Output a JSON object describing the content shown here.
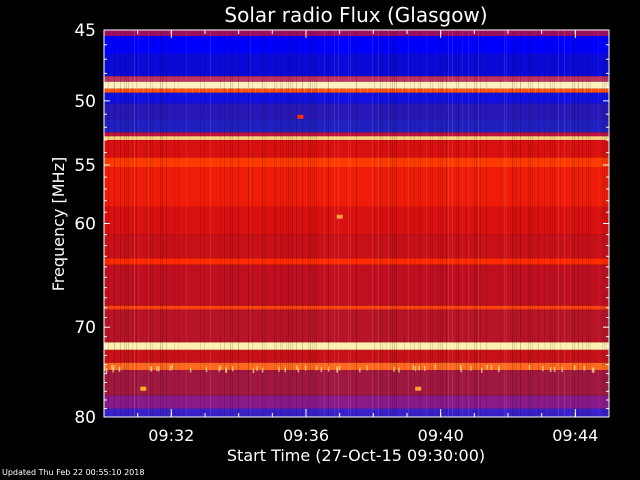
{
  "chart_data": {
    "type": "heatmap",
    "title": "Solar radio Flux (Glasgow)",
    "xlabel": "Start Time (27-Oct-15 09:30:00)",
    "ylabel": "Frequency [MHz]",
    "y_scale": "log",
    "ylim": [
      45,
      80
    ],
    "y_ticks": [
      45,
      50,
      55,
      60,
      70,
      80
    ],
    "y_tick_labels": [
      "45",
      "50",
      "55",
      "60",
      "70",
      "80"
    ],
    "x_ticks": [
      "09:32",
      "09:36",
      "09:40",
      "09:44"
    ],
    "x_range": [
      "09:30:00",
      "09:45:00"
    ],
    "colormap": [
      "#000040",
      "#0000ff",
      "#2020c0",
      "#8a1a8a",
      "#d81010",
      "#ff2a00",
      "#ffa040",
      "#fff0b0"
    ],
    "bands": [
      {
        "f0": 45.0,
        "f1": 45.4,
        "color": "#a01060"
      },
      {
        "f0": 45.4,
        "f1": 46.6,
        "color": "#0000ff"
      },
      {
        "f0": 46.6,
        "f1": 48.2,
        "color": "#0a0ad8"
      },
      {
        "f0": 48.2,
        "f1": 48.6,
        "color": "#c03060"
      },
      {
        "f0": 48.6,
        "f1": 49.1,
        "color": "#fff0c0"
      },
      {
        "f0": 49.1,
        "f1": 49.4,
        "color": "#ff5010"
      },
      {
        "f0": 49.4,
        "f1": 50.2,
        "color": "#1010e0"
      },
      {
        "f0": 50.2,
        "f1": 51.4,
        "color": "#2818b8"
      },
      {
        "f0": 51.4,
        "f1": 52.4,
        "color": "#2020c0"
      },
      {
        "f0": 52.4,
        "f1": 52.7,
        "color": "#c01040"
      },
      {
        "f0": 52.7,
        "f1": 53.0,
        "color": "#ffd080"
      },
      {
        "f0": 53.0,
        "f1": 54.4,
        "color": "#d81010"
      },
      {
        "f0": 54.4,
        "f1": 55.2,
        "color": "#ff3a00"
      },
      {
        "f0": 55.2,
        "f1": 58.5,
        "color": "#ee1c08"
      },
      {
        "f0": 58.5,
        "f1": 61.0,
        "color": "#d81010"
      },
      {
        "f0": 61.0,
        "f1": 63.2,
        "color": "#c81018"
      },
      {
        "f0": 63.2,
        "f1": 63.8,
        "color": "#ff2a00"
      },
      {
        "f0": 63.8,
        "f1": 67.8,
        "color": "#c01020"
      },
      {
        "f0": 67.8,
        "f1": 68.2,
        "color": "#ff4010"
      },
      {
        "f0": 68.2,
        "f1": 71.6,
        "color": "#b81428"
      },
      {
        "f0": 71.6,
        "f1": 72.4,
        "color": "#fff0b0"
      },
      {
        "f0": 72.4,
        "f1": 73.8,
        "color": "#c81018"
      },
      {
        "f0": 73.8,
        "f1": 74.6,
        "color": "#ff6a20"
      },
      {
        "f0": 74.6,
        "f1": 77.5,
        "color": "#a01840"
      },
      {
        "f0": 77.5,
        "f1": 79.0,
        "color": "#8a1a8a"
      },
      {
        "f0": 79.0,
        "f1": 80.0,
        "color": "#3a20c8"
      }
    ],
    "spots": [
      {
        "t": "09:35:50",
        "f": 51.2,
        "color": "#ff3000"
      },
      {
        "t": "09:37:00",
        "f": 59.4,
        "color": "#ffa040"
      },
      {
        "t": "09:31:10",
        "f": 76.7,
        "color": "#ffb020"
      },
      {
        "t": "09:39:20",
        "f": 76.7,
        "color": "#ffa030"
      }
    ]
  },
  "footer": {
    "updated": "Updated Thu Feb 22 00:55:10 2018"
  }
}
